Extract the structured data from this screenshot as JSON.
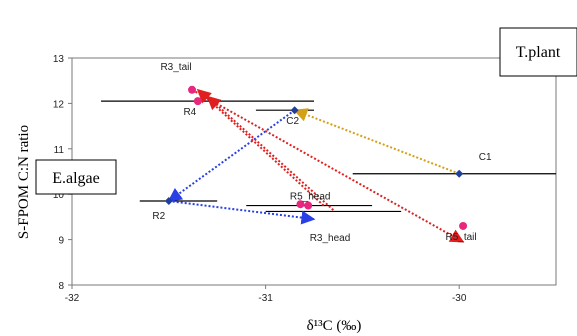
{
  "chart_data": {
    "type": "scatter",
    "title": "",
    "xlabel": "δ¹³C (‰)",
    "ylabel": "S-FPOM C:N ratio",
    "xlim": [
      -32,
      -29.5
    ],
    "ylim": [
      8,
      13
    ],
    "xticks": [
      -32,
      -31,
      -30
    ],
    "yticks": [
      8,
      9,
      10,
      11,
      12,
      13
    ],
    "tick_labels_x": [
      "-32",
      "-31",
      "-30"
    ],
    "tick_labels_y": [
      "8",
      "9",
      "10",
      "11",
      "12",
      "13"
    ],
    "grid": false,
    "reference_labels": [
      {
        "text": "T.plant",
        "at": "top-right"
      },
      {
        "text": "E.algae",
        "at": "left"
      }
    ],
    "points": [
      {
        "label": "C1",
        "x": -30.0,
        "y": 10.45,
        "marker": "diamond",
        "color": "#1f3f99"
      },
      {
        "label": "C2",
        "x": -30.85,
        "y": 11.85,
        "marker": "diamond",
        "color": "#1f3f99"
      },
      {
        "label": "R2",
        "x": -31.5,
        "y": 9.85,
        "marker": "diamond",
        "color": "#1f3f99"
      },
      {
        "label": "R3_tail",
        "x": -31.38,
        "y": 12.3,
        "marker": "circle",
        "color": "#e8287e"
      },
      {
        "label": "R4",
        "x": -31.35,
        "y": 12.05,
        "marker": "circle",
        "color": "#e8287e"
      },
      {
        "label": "R5_head",
        "x": -30.78,
        "y": 9.75,
        "marker": "circle",
        "color": "#e8287e"
      },
      {
        "label": "",
        "x": -30.82,
        "y": 9.78,
        "marker": "circle",
        "color": "#e8287e"
      },
      {
        "label": "R3_head",
        "x": -30.75,
        "y": 9.45,
        "marker": "none",
        "color": "#e8287e"
      },
      {
        "label": "R5_tail",
        "x": -29.98,
        "y": 9.3,
        "marker": "circle",
        "color": "#e8287e"
      }
    ],
    "error_bars_x": [
      {
        "y": 12.05,
        "xmin": -31.85,
        "xmax": -30.75
      },
      {
        "y": 11.85,
        "xmin": -31.05,
        "xmax": -30.75
      },
      {
        "y": 10.45,
        "xmin": -30.55,
        "xmax": -29.5
      },
      {
        "y": 9.85,
        "xmin": -31.65,
        "xmax": -31.25
      },
      {
        "y": 9.75,
        "xmin": -31.1,
        "xmax": -30.45
      },
      {
        "y": 9.62,
        "xmin": -31.0,
        "xmax": -30.3
      }
    ],
    "arrows": [
      {
        "from": [
          -30.0,
          10.45
        ],
        "to": [
          -30.85,
          11.85
        ],
        "color": "#d4a017"
      },
      {
        "from": [
          -30.85,
          11.85
        ],
        "to": [
          -31.5,
          9.85
        ],
        "color": "#2a3fe6"
      },
      {
        "from": [
          -31.5,
          9.85
        ],
        "to": [
          -30.75,
          9.45
        ],
        "color": "#2a3fe6"
      },
      {
        "from": [
          -30.7,
          9.75
        ],
        "to": [
          -31.35,
          12.3
        ],
        "color": "#e02020"
      },
      {
        "from": [
          -30.65,
          9.65
        ],
        "to": [
          -31.3,
          12.15
        ],
        "color": "#e02020"
      },
      {
        "from": [
          -31.38,
          12.3
        ],
        "to": [
          -29.98,
          8.95
        ],
        "color": "#e02020"
      }
    ]
  }
}
